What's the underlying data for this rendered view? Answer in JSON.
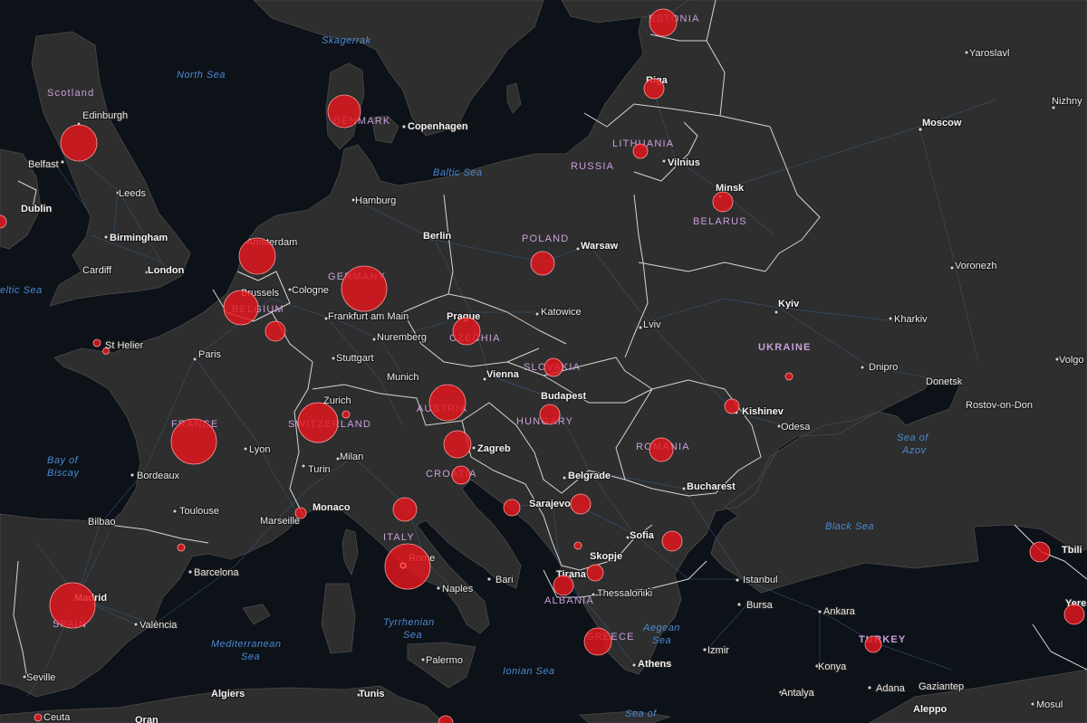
{
  "map": {
    "style": "dark",
    "colors": {
      "sea": "#0d1118",
      "land": "#2e2e2e",
      "border": "#d8d8d8",
      "road": "#3a5a78",
      "bubble": "#e6161d",
      "country_label": "#c9a0dc",
      "sea_label": "#4a8bd0",
      "city_label": "#e8e8e8"
    }
  },
  "sea_labels": [
    {
      "id": "skagerrak",
      "text": "Skagerrak"
    },
    {
      "id": "north-sea",
      "text": "North Sea"
    },
    {
      "id": "baltic-sea",
      "text": "Baltic Sea"
    },
    {
      "id": "celtic-sea",
      "text": "eltic Sea"
    },
    {
      "id": "bay-biscay-1",
      "text": "Bay of"
    },
    {
      "id": "bay-biscay-2",
      "text": "Biscay"
    },
    {
      "id": "med-1",
      "text": "Mediterranean"
    },
    {
      "id": "med-2",
      "text": "Sea"
    },
    {
      "id": "tyrr-1",
      "text": "Tyrrhenian"
    },
    {
      "id": "tyrr-2",
      "text": "Sea"
    },
    {
      "id": "ionian",
      "text": "Ionian Sea"
    },
    {
      "id": "aegean-1",
      "text": "Aegean"
    },
    {
      "id": "aegean-2",
      "text": "Sea"
    },
    {
      "id": "black-sea",
      "text": "Black Sea"
    },
    {
      "id": "azov-1",
      "text": "Sea of"
    },
    {
      "id": "azov-2",
      "text": "Azov"
    },
    {
      "id": "crete-1",
      "text": "Sea of"
    }
  ],
  "country_labels": [
    {
      "id": "estonia",
      "text": "ESTONIA"
    },
    {
      "id": "scotland",
      "text": "Scotland"
    },
    {
      "id": "denmark",
      "text": "DENMARK"
    },
    {
      "id": "lithuania",
      "text": "LITHUANIA"
    },
    {
      "id": "russia",
      "text": "RUSSIA"
    },
    {
      "id": "belarus",
      "text": "BELARUS"
    },
    {
      "id": "poland",
      "text": "POLAND"
    },
    {
      "id": "germany",
      "text": "GERMANY"
    },
    {
      "id": "belgium",
      "text": "BELGIUM"
    },
    {
      "id": "czechia",
      "text": "CZECHIA"
    },
    {
      "id": "slovakia",
      "text": "SLOVAKIA"
    },
    {
      "id": "ukraine",
      "text": "UKRAINE"
    },
    {
      "id": "austria",
      "text": "AUSTRIA"
    },
    {
      "id": "hungary",
      "text": "HUNGARY"
    },
    {
      "id": "france",
      "text": "FRANCE"
    },
    {
      "id": "switzerland",
      "text": "SWITZERLAND"
    },
    {
      "id": "romania",
      "text": "ROMANIA"
    },
    {
      "id": "croatia",
      "text": "CROATIA"
    },
    {
      "id": "italy",
      "text": "ITALY"
    },
    {
      "id": "albania",
      "text": "ALBANIA"
    },
    {
      "id": "greece",
      "text": "GREECE"
    },
    {
      "id": "turkey",
      "text": "TURKEY"
    },
    {
      "id": "spain",
      "text": "SPAIN"
    }
  ],
  "city_labels": [
    {
      "id": "yaroslavl",
      "text": "Yaroslavl",
      "major": false
    },
    {
      "id": "nizhny",
      "text": "Nizhny",
      "major": false
    },
    {
      "id": "moscow",
      "text": "Moscow",
      "major": true
    },
    {
      "id": "riga",
      "text": "Riga",
      "major": true
    },
    {
      "id": "edinburgh",
      "text": "Edinburgh",
      "major": false
    },
    {
      "id": "copenhagen",
      "text": "Copenhagen",
      "major": true
    },
    {
      "id": "belfast",
      "text": "Belfast",
      "major": false
    },
    {
      "id": "vilnius",
      "text": "Vilnius",
      "major": true
    },
    {
      "id": "leeds",
      "text": "Leeds",
      "major": false
    },
    {
      "id": "hamburg",
      "text": "Hamburg",
      "major": false
    },
    {
      "id": "minsk",
      "text": "Minsk",
      "major": true
    },
    {
      "id": "dublin",
      "text": "Dublin",
      "major": true
    },
    {
      "id": "birmingham",
      "text": "Birmingham",
      "major": true
    },
    {
      "id": "berlin",
      "text": "Berlin",
      "major": true
    },
    {
      "id": "amsterdam",
      "text": "Amsterdam",
      "major": false
    },
    {
      "id": "warsaw",
      "text": "Warsaw",
      "major": true
    },
    {
      "id": "cardiff",
      "text": "Cardiff",
      "major": false
    },
    {
      "id": "london",
      "text": "London",
      "major": true
    },
    {
      "id": "voronezh",
      "text": "Voronezh",
      "major": false
    },
    {
      "id": "brussels",
      "text": "Brussels",
      "major": false
    },
    {
      "id": "cologne",
      "text": "Cologne",
      "major": false
    },
    {
      "id": "kyiv",
      "text": "Kyiv",
      "major": true
    },
    {
      "id": "frankfurt",
      "text": "Frankfurt am Main",
      "major": false
    },
    {
      "id": "prague",
      "text": "Prague",
      "major": true
    },
    {
      "id": "katowice",
      "text": "Katowice",
      "major": false
    },
    {
      "id": "kharkiv",
      "text": "Kharkiv",
      "major": false
    },
    {
      "id": "lviv",
      "text": "Lviv",
      "major": false
    },
    {
      "id": "st-helier",
      "text": "St Helier",
      "major": false
    },
    {
      "id": "nuremberg",
      "text": "Nuremberg",
      "major": false
    },
    {
      "id": "paris",
      "text": "Paris",
      "major": false
    },
    {
      "id": "stuttgart",
      "text": "Stuttgart",
      "major": false
    },
    {
      "id": "dnipro",
      "text": "Dnipro",
      "major": false
    },
    {
      "id": "volgo",
      "text": "Volgo",
      "major": false
    },
    {
      "id": "munich",
      "text": "Munich",
      "major": false
    },
    {
      "id": "vienna",
      "text": "Vienna",
      "major": true
    },
    {
      "id": "donetsk",
      "text": "Donetsk",
      "major": false
    },
    {
      "id": "zurich",
      "text": "Zurich",
      "major": false
    },
    {
      "id": "budapest",
      "text": "Budapest",
      "major": true
    },
    {
      "id": "rostov",
      "text": "Rostov-on-Don",
      "major": false
    },
    {
      "id": "kishinev",
      "text": "Kishinev",
      "major": true
    },
    {
      "id": "odesa",
      "text": "Odesa",
      "major": false
    },
    {
      "id": "lyon",
      "text": "Lyon",
      "major": false
    },
    {
      "id": "milan",
      "text": "Milan",
      "major": false
    },
    {
      "id": "zagreb",
      "text": "Zagreb",
      "major": true
    },
    {
      "id": "turin",
      "text": "Turin",
      "major": false
    },
    {
      "id": "bordeaux",
      "text": "Bordeaux",
      "major": false
    },
    {
      "id": "belgrade",
      "text": "Belgrade",
      "major": true
    },
    {
      "id": "bucharest",
      "text": "Bucharest",
      "major": true
    },
    {
      "id": "toulouse",
      "text": "Toulouse",
      "major": false
    },
    {
      "id": "monaco",
      "text": "Monaco",
      "major": true
    },
    {
      "id": "sarajevo",
      "text": "Sarajevo",
      "major": true
    },
    {
      "id": "bilbao",
      "text": "Bilbao",
      "major": false
    },
    {
      "id": "marseille",
      "text": "Marseille",
      "major": false
    },
    {
      "id": "sofia",
      "text": "Sofia",
      "major": true
    },
    {
      "id": "tbilisi",
      "text": "Tbili",
      "major": true
    },
    {
      "id": "skopje",
      "text": "Skopje",
      "major": true
    },
    {
      "id": "rome",
      "text": "Rome",
      "major": false
    },
    {
      "id": "barcelona",
      "text": "Barcelona",
      "major": false
    },
    {
      "id": "tirana",
      "text": "Tirana",
      "major": true
    },
    {
      "id": "bari",
      "text": "Bari",
      "major": false
    },
    {
      "id": "istanbul",
      "text": "Istanbul",
      "major": false
    },
    {
      "id": "naples",
      "text": "Naples",
      "major": false
    },
    {
      "id": "thessaloniki",
      "text": "Thessaloniki",
      "major": false
    },
    {
      "id": "madrid",
      "text": "Madrid",
      "major": true
    },
    {
      "id": "bursa",
      "text": "Bursa",
      "major": false
    },
    {
      "id": "ankara",
      "text": "Ankara",
      "major": false
    },
    {
      "id": "yerevan",
      "text": "Yere",
      "major": true
    },
    {
      "id": "valencia",
      "text": "València",
      "major": false
    },
    {
      "id": "izmir",
      "text": "Izmir",
      "major": false
    },
    {
      "id": "palermo",
      "text": "Palermo",
      "major": false
    },
    {
      "id": "athens",
      "text": "Athens",
      "major": true
    },
    {
      "id": "seville",
      "text": "Seville",
      "major": false
    },
    {
      "id": "konya",
      "text": "Konya",
      "major": false
    },
    {
      "id": "gaziantep",
      "text": "Gaziantep",
      "major": false
    },
    {
      "id": "algiers",
      "text": "Algiers",
      "major": true
    },
    {
      "id": "tunis",
      "text": "Tunis",
      "major": true
    },
    {
      "id": "antalya",
      "text": "Antalya",
      "major": false
    },
    {
      "id": "adana",
      "text": "Adana",
      "major": false
    },
    {
      "id": "ceuta",
      "text": "Ceuta",
      "major": false
    },
    {
      "id": "oran",
      "text": "Oran",
      "major": true
    },
    {
      "id": "mosul",
      "text": "Mosul",
      "major": false
    },
    {
      "id": "aleppo",
      "text": "Aleppo",
      "major": true
    }
  ],
  "bubbles": [
    {
      "id": "estonia"
    },
    {
      "id": "latvia"
    },
    {
      "id": "denmark"
    },
    {
      "id": "scotland"
    },
    {
      "id": "lithuania"
    },
    {
      "id": "belarus"
    },
    {
      "id": "ireland"
    },
    {
      "id": "netherlands"
    },
    {
      "id": "poland"
    },
    {
      "id": "germany"
    },
    {
      "id": "belgium"
    },
    {
      "id": "luxembourg"
    },
    {
      "id": "czechia"
    },
    {
      "id": "jersey"
    },
    {
      "id": "guernsey"
    },
    {
      "id": "slovakia"
    },
    {
      "id": "austria"
    },
    {
      "id": "ukraine"
    },
    {
      "id": "moldova"
    },
    {
      "id": "liechtenstein"
    },
    {
      "id": "switzerland"
    },
    {
      "id": "hungary"
    },
    {
      "id": "france"
    },
    {
      "id": "slovenia"
    },
    {
      "id": "romania"
    },
    {
      "id": "croatia"
    },
    {
      "id": "bosnia"
    },
    {
      "id": "serbia"
    },
    {
      "id": "san-marino"
    },
    {
      "id": "monaco"
    },
    {
      "id": "andorra"
    },
    {
      "id": "bulgaria"
    },
    {
      "id": "kosovo"
    },
    {
      "id": "georgia"
    },
    {
      "id": "north-macedonia"
    },
    {
      "id": "italy"
    },
    {
      "id": "vatican"
    },
    {
      "id": "albania"
    },
    {
      "id": "spain"
    },
    {
      "id": "armenia"
    },
    {
      "id": "greece"
    },
    {
      "id": "turkey"
    },
    {
      "id": "gibraltar"
    },
    {
      "id": "malta"
    }
  ]
}
